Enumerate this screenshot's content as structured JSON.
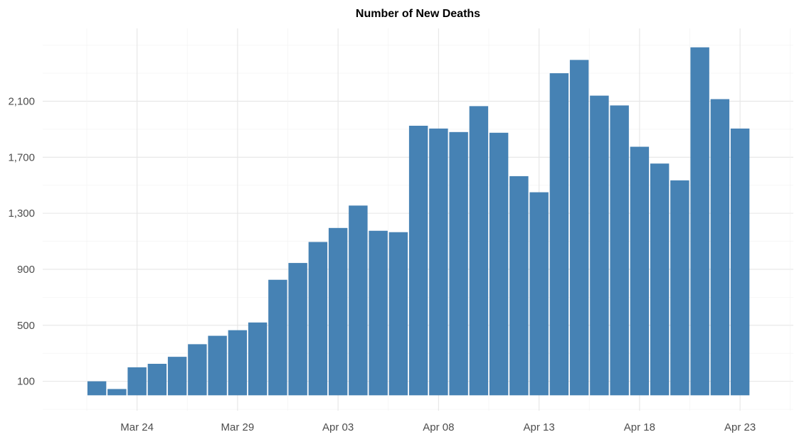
{
  "chart_data": {
    "type": "bar",
    "title": "Number of New Deaths",
    "xlabel": "",
    "ylabel": "",
    "categories": [
      "Mar 22",
      "Mar 23",
      "Mar 24",
      "Mar 25",
      "Mar 26",
      "Mar 27",
      "Mar 28",
      "Mar 29",
      "Mar 30",
      "Mar 31",
      "Apr 01",
      "Apr 02",
      "Apr 03",
      "Apr 04",
      "Apr 05",
      "Apr 06",
      "Apr 07",
      "Apr 08",
      "Apr 09",
      "Apr 10",
      "Apr 11",
      "Apr 12",
      "Apr 13",
      "Apr 14",
      "Apr 15",
      "Apr 16",
      "Apr 17",
      "Apr 18",
      "Apr 19",
      "Apr 20",
      "Apr 21",
      "Apr 22",
      "Apr 23"
    ],
    "values": [
      100,
      45,
      200,
      225,
      275,
      365,
      425,
      465,
      520,
      825,
      945,
      1095,
      1195,
      1355,
      1175,
      1165,
      1925,
      1905,
      1880,
      2065,
      1875,
      1565,
      1450,
      2300,
      2395,
      2140,
      2070,
      1775,
      1655,
      1535,
      2485,
      2115,
      1905
    ],
    "y_ticks": [
      "100",
      "500",
      "900",
      "1,300",
      "1,700",
      "2,100"
    ],
    "y_tick_values": [
      100,
      500,
      900,
      1300,
      1700,
      2100
    ],
    "x_ticks": [
      "Mar 24",
      "Mar 29",
      "Apr 03",
      "Apr 08",
      "Apr 13",
      "Apr 18",
      "Apr 23"
    ],
    "x_tick_indices": [
      2,
      7,
      12,
      17,
      22,
      27,
      32
    ],
    "ylim": [
      -110,
      2620
    ],
    "grid": true,
    "legend": "none",
    "colors": {
      "bar": "#4682b4",
      "grid_major": "#e6e6e6",
      "grid_minor": "#f2f2f2",
      "tick_text": "#4d4d4d"
    }
  }
}
